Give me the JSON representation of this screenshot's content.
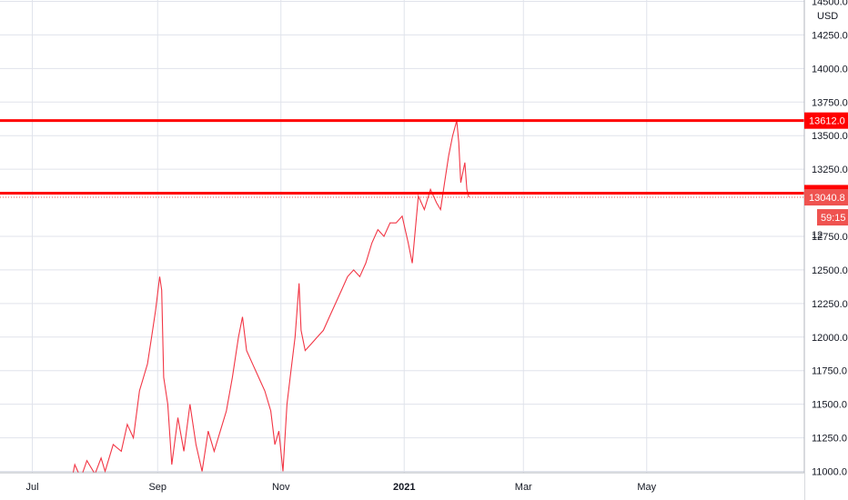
{
  "chart_data": {
    "type": "line",
    "title": "",
    "currency": "USD",
    "x_axis_labels": [
      "Jul",
      "Sep",
      "Nov",
      "2021",
      "Mar",
      "May"
    ],
    "x_axis_bold": [
      "2021"
    ],
    "y_ticks": [
      "14500.0",
      "14250.0",
      "14000.0",
      "13750.0",
      "13500.0",
      "13250.0",
      "12750.0",
      "12500.0",
      "12250.0",
      "12000.0",
      "11750.0",
      "11500.0",
      "11250.0",
      "11000.0"
    ],
    "ylim": [
      10990,
      14510
    ],
    "grid": true,
    "series": [
      {
        "color": "#f23645",
        "points": [
          [
            "2020-07-20",
            10900
          ],
          [
            "2020-07-22",
            11050
          ],
          [
            "2020-07-25",
            10950
          ],
          [
            "2020-07-28",
            11080
          ],
          [
            "2020-08-01",
            10980
          ],
          [
            "2020-08-04",
            11100
          ],
          [
            "2020-08-06",
            11000
          ],
          [
            "2020-08-10",
            11200
          ],
          [
            "2020-08-14",
            11150
          ],
          [
            "2020-08-17",
            11350
          ],
          [
            "2020-08-20",
            11250
          ],
          [
            "2020-08-23",
            11600
          ],
          [
            "2020-08-25",
            11700
          ],
          [
            "2020-08-27",
            11800
          ],
          [
            "2020-08-29",
            12000
          ],
          [
            "2020-08-31",
            12200
          ],
          [
            "2020-09-02",
            12450
          ],
          [
            "2020-09-03",
            12350
          ],
          [
            "2020-09-04",
            11700
          ],
          [
            "2020-09-06",
            11500
          ],
          [
            "2020-09-08",
            11050
          ],
          [
            "2020-09-11",
            11400
          ],
          [
            "2020-09-14",
            11150
          ],
          [
            "2020-09-17",
            11500
          ],
          [
            "2020-09-20",
            11200
          ],
          [
            "2020-09-23",
            11000
          ],
          [
            "2020-09-26",
            11300
          ],
          [
            "2020-09-29",
            11150
          ],
          [
            "2020-10-02",
            11300
          ],
          [
            "2020-10-05",
            11450
          ],
          [
            "2020-10-08",
            11700
          ],
          [
            "2020-10-11",
            12000
          ],
          [
            "2020-10-13",
            12150
          ],
          [
            "2020-10-15",
            11900
          ],
          [
            "2020-10-18",
            11800
          ],
          [
            "2020-10-21",
            11700
          ],
          [
            "2020-10-24",
            11600
          ],
          [
            "2020-10-27",
            11450
          ],
          [
            "2020-10-29",
            11200
          ],
          [
            "2020-10-31",
            11300
          ],
          [
            "2020-11-02",
            11000
          ],
          [
            "2020-11-04",
            11500
          ],
          [
            "2020-11-06",
            11750
          ],
          [
            "2020-11-08",
            12000
          ],
          [
            "2020-11-10",
            12400
          ],
          [
            "2020-11-11",
            12050
          ],
          [
            "2020-11-13",
            11900
          ],
          [
            "2020-11-16",
            11950
          ],
          [
            "2020-11-19",
            12000
          ],
          [
            "2020-11-22",
            12050
          ],
          [
            "2020-11-25",
            12150
          ],
          [
            "2020-11-28",
            12250
          ],
          [
            "2020-12-01",
            12350
          ],
          [
            "2020-12-04",
            12450
          ],
          [
            "2020-12-07",
            12500
          ],
          [
            "2020-12-10",
            12450
          ],
          [
            "2020-12-13",
            12550
          ],
          [
            "2020-12-16",
            12700
          ],
          [
            "2020-12-19",
            12800
          ],
          [
            "2020-12-22",
            12750
          ],
          [
            "2020-12-25",
            12850
          ],
          [
            "2020-12-28",
            12850
          ],
          [
            "2020-12-31",
            12900
          ],
          [
            "2021-01-03",
            12700
          ],
          [
            "2021-01-05",
            12550
          ],
          [
            "2021-01-08",
            13050
          ],
          [
            "2021-01-11",
            12950
          ],
          [
            "2021-01-14",
            13100
          ],
          [
            "2021-01-17",
            13000
          ],
          [
            "2021-01-19",
            12950
          ],
          [
            "2021-01-21",
            13150
          ],
          [
            "2021-01-23",
            13350
          ],
          [
            "2021-01-25",
            13500
          ],
          [
            "2021-01-27",
            13612
          ],
          [
            "2021-01-28",
            13450
          ],
          [
            "2021-01-29",
            13150
          ],
          [
            "2021-01-31",
            13300
          ],
          [
            "2021-02-01",
            13100
          ],
          [
            "2021-02-02",
            13040.8
          ]
        ]
      }
    ],
    "horizontal_lines": [
      {
        "value": 13612.0,
        "label": "13612.0",
        "color": "#ff0000"
      },
      {
        "value": 13071.9,
        "label": "13071.9",
        "color": "#ff0000"
      }
    ],
    "last_price": {
      "value": 13040.8,
      "label": "13040.8",
      "color": "#ef5350"
    },
    "countdown": "59:15",
    "axis_label_partial": "12",
    "xlim": [
      "2020-06-15",
      "2021-07-18"
    ]
  }
}
